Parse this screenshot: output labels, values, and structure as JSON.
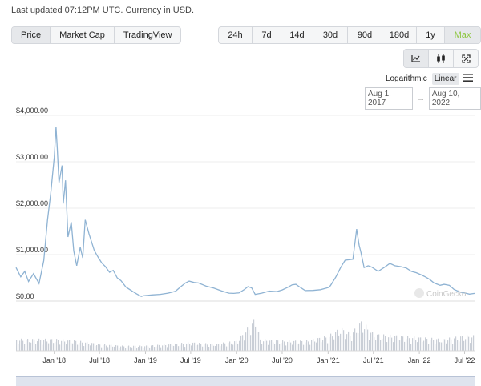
{
  "header": {
    "updated": "Last updated 07:12PM UTC. Currency in USD."
  },
  "chart_type_tabs": [
    {
      "label": "Price",
      "active": true
    },
    {
      "label": "Market Cap",
      "active": false
    },
    {
      "label": "TradingView",
      "active": false
    }
  ],
  "range_tabs": [
    {
      "label": "24h"
    },
    {
      "label": "7d"
    },
    {
      "label": "14d"
    },
    {
      "label": "30d"
    },
    {
      "label": "90d"
    },
    {
      "label": "180d"
    },
    {
      "label": "1y"
    },
    {
      "label": "Max",
      "active": true
    }
  ],
  "view_icons": [
    "line-chart-icon",
    "candlestick-icon",
    "fullscreen-icon"
  ],
  "scale": {
    "log": "Logarithmic",
    "linear": "Linear",
    "active": "linear"
  },
  "date_range": {
    "from": "Aug 1, 2017",
    "to": "Aug 10, 2022"
  },
  "watermark": "CoinGecko",
  "colors": {
    "line": "#8fb3d3",
    "grid": "#ececec",
    "volume": "#c9ced6",
    "accent": "#8dc63f"
  },
  "chart_data": {
    "type": "line",
    "title": "",
    "y_tick_labels": [
      "$0.00",
      "$1,000.00",
      "$2,000.00",
      "$3,000.00",
      "$4,000.00"
    ],
    "ylim": [
      0,
      4000
    ],
    "x_tick_labels": [
      "Jan '18",
      "Jul '18",
      "Jan '19",
      "Jul '19",
      "Jan '20",
      "Jul '20",
      "Jan '21",
      "Jul '21",
      "Jan '22",
      "Jul '22"
    ],
    "x_tick_dates": [
      "2018-01-01",
      "2018-07-01",
      "2019-01-01",
      "2019-07-01",
      "2020-01-01",
      "2020-07-01",
      "2021-01-01",
      "2021-07-01",
      "2022-01-01",
      "2022-07-01"
    ],
    "xlim": [
      "2017-08-01",
      "2022-08-10"
    ],
    "grid": true,
    "series": [
      {
        "x": [
          "2017-08-01",
          "2017-08-20",
          "2017-09-05",
          "2017-09-20",
          "2017-10-10",
          "2017-11-01",
          "2017-11-20",
          "2017-12-05",
          "2017-12-18",
          "2018-01-01",
          "2018-01-08",
          "2018-01-13",
          "2018-01-20",
          "2018-02-01",
          "2018-02-06",
          "2018-02-15",
          "2018-02-25",
          "2018-03-10",
          "2018-03-20",
          "2018-04-01",
          "2018-04-15",
          "2018-04-25",
          "2018-05-05",
          "2018-05-20",
          "2018-06-10",
          "2018-06-25",
          "2018-07-10",
          "2018-07-25",
          "2018-08-10",
          "2018-08-25",
          "2018-09-10",
          "2018-09-25",
          "2018-10-15",
          "2018-11-10",
          "2018-11-25",
          "2018-12-15",
          "2018-12-25",
          "2019-01-10",
          "2019-02-01",
          "2019-03-01",
          "2019-04-01",
          "2019-05-01",
          "2019-05-20",
          "2019-06-10",
          "2019-06-25",
          "2019-07-15",
          "2019-08-01",
          "2019-09-01",
          "2019-10-01",
          "2019-11-01",
          "2019-12-01",
          "2019-12-20",
          "2020-01-10",
          "2020-02-01",
          "2020-02-15",
          "2020-03-01",
          "2020-03-15",
          "2020-04-10",
          "2020-05-10",
          "2020-06-10",
          "2020-07-01",
          "2020-07-25",
          "2020-08-10",
          "2020-08-25",
          "2020-09-10",
          "2020-10-01",
          "2020-11-01",
          "2020-12-01",
          "2021-01-01",
          "2021-01-10",
          "2021-02-01",
          "2021-02-20",
          "2021-03-10",
          "2021-04-10",
          "2021-04-25",
          "2021-05-05",
          "2021-05-12",
          "2021-05-25",
          "2021-06-10",
          "2021-06-25",
          "2021-07-20",
          "2021-08-15",
          "2021-09-05",
          "2021-09-25",
          "2021-10-20",
          "2021-11-10",
          "2021-11-30",
          "2021-12-20",
          "2022-01-10",
          "2022-01-25",
          "2022-02-10",
          "2022-03-01",
          "2022-03-25",
          "2022-04-10",
          "2022-05-01",
          "2022-05-20",
          "2022-06-15",
          "2022-07-01",
          "2022-07-20",
          "2022-08-10"
        ],
        "y": [
          720,
          520,
          640,
          420,
          590,
          380,
          870,
          1750,
          2320,
          3100,
          3750,
          3300,
          2550,
          2920,
          2100,
          2600,
          1380,
          1700,
          1080,
          760,
          1160,
          930,
          1750,
          1450,
          1090,
          950,
          820,
          740,
          620,
          660,
          500,
          440,
          300,
          210,
          160,
          100,
          115,
          125,
          135,
          145,
          170,
          210,
          300,
          390,
          430,
          400,
          390,
          320,
          280,
          220,
          170,
          165,
          175,
          250,
          310,
          285,
          145,
          170,
          215,
          205,
          240,
          300,
          350,
          360,
          300,
          225,
          230,
          245,
          290,
          330,
          520,
          720,
          880,
          900,
          1550,
          1200,
          1050,
          720,
          760,
          730,
          640,
          730,
          810,
          760,
          740,
          710,
          640,
          610,
          560,
          520,
          470,
          390,
          340,
          360,
          340,
          250,
          190,
          175,
          150,
          165
        ]
      }
    ],
    "volume": {
      "x": [
        "2018-01-01",
        "2018-04-01",
        "2018-07-01",
        "2018-10-01",
        "2019-01-01",
        "2019-04-01",
        "2019-07-01",
        "2019-10-01",
        "2020-01-01",
        "2020-03-15",
        "2020-04-01",
        "2020-07-01",
        "2020-10-01",
        "2021-01-01",
        "2021-02-20",
        "2021-04-01",
        "2021-05-12",
        "2021-07-01",
        "2021-10-01",
        "2022-01-01",
        "2022-04-01",
        "2022-07-01"
      ],
      "v": [
        0.35,
        0.3,
        0.2,
        0.15,
        0.15,
        0.2,
        0.25,
        0.2,
        0.3,
        1.0,
        0.35,
        0.3,
        0.3,
        0.45,
        0.7,
        0.5,
        0.9,
        0.5,
        0.45,
        0.4,
        0.35,
        0.45
      ]
    }
  }
}
